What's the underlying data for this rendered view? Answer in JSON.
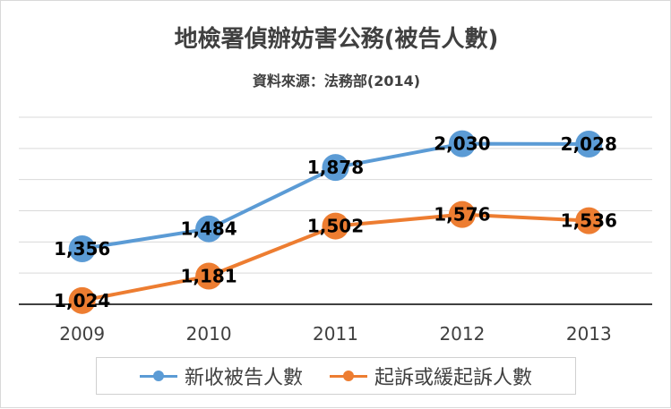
{
  "chart_data": {
    "type": "line",
    "title": "地檢署偵辦妨害公務(被告人數)",
    "subtitle": "資料來源：法務部(2014)",
    "categories": [
      "2009",
      "2010",
      "2011",
      "2012",
      "2013"
    ],
    "series": [
      {
        "name": "新收被告人數",
        "color": "#5b9bd5",
        "values": [
          1356,
          1484,
          1878,
          2030,
          2028
        ],
        "labels": [
          "1,356",
          "1,484",
          "1,878",
          "2,030",
          "2,028"
        ]
      },
      {
        "name": "起訴或緩起訴人數",
        "color": "#ed7d31",
        "values": [
          1024,
          1181,
          1502,
          1576,
          1536
        ],
        "labels": [
          "1,024",
          "1,181",
          "1,502",
          "1,576",
          "1,536"
        ]
      }
    ],
    "ylim": [
      1000,
      2200
    ],
    "grid": true,
    "legend_position": "bottom"
  }
}
